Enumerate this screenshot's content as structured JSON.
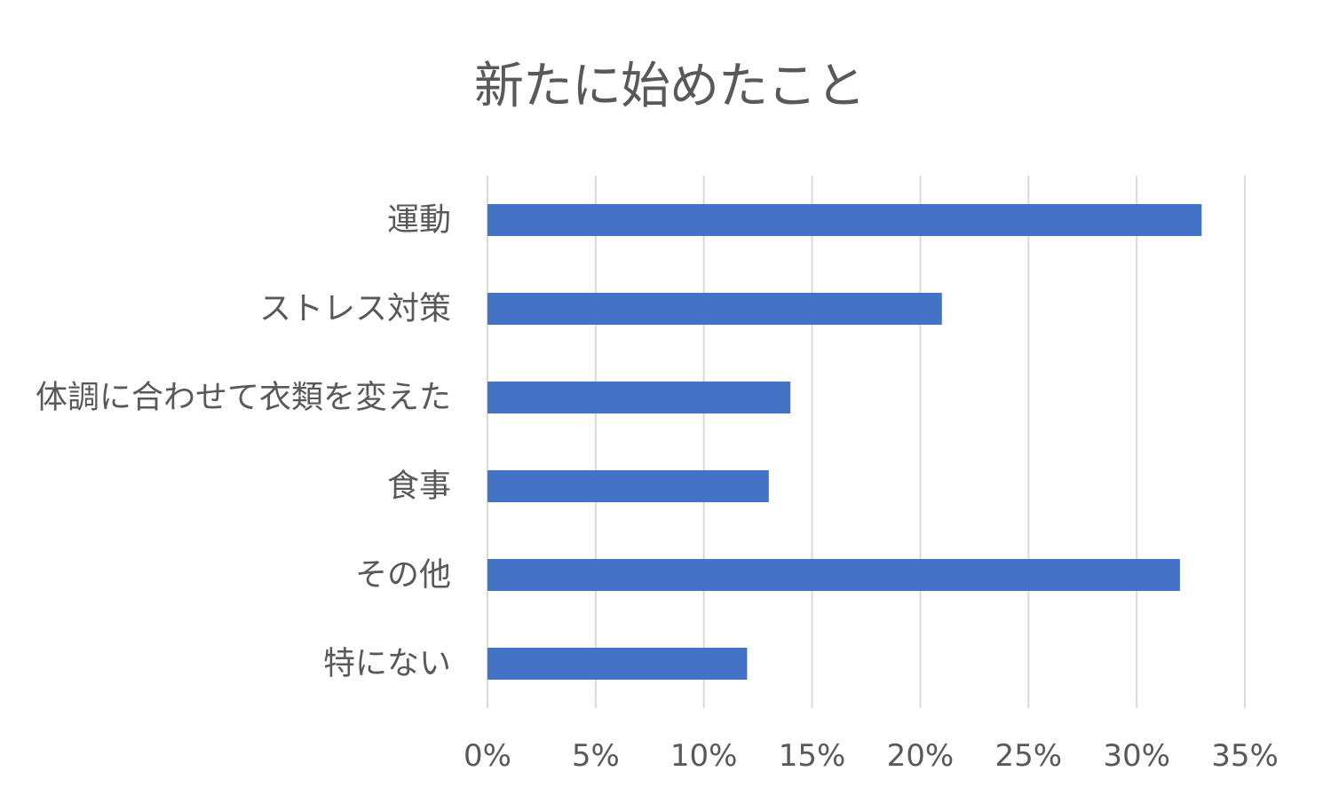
{
  "chart_data": {
    "type": "bar",
    "orientation": "horizontal",
    "title": "新たに始めたこと",
    "categories": [
      "運動",
      "ストレス対策",
      "体調に合わせて衣類を変えた",
      "食事",
      "その他",
      "特にない"
    ],
    "series": [
      {
        "values": [
          33,
          21,
          14,
          13,
          32,
          12
        ]
      }
    ],
    "xlim": [
      0,
      35
    ],
    "xticks": [
      "0%",
      "5%",
      "10%",
      "15%",
      "20%",
      "25%",
      "30%",
      "35%"
    ],
    "unit": "%",
    "grid": true,
    "bar_color": "#4472C4",
    "grid_color": "#D9D9D9",
    "text_color": "#595959"
  }
}
